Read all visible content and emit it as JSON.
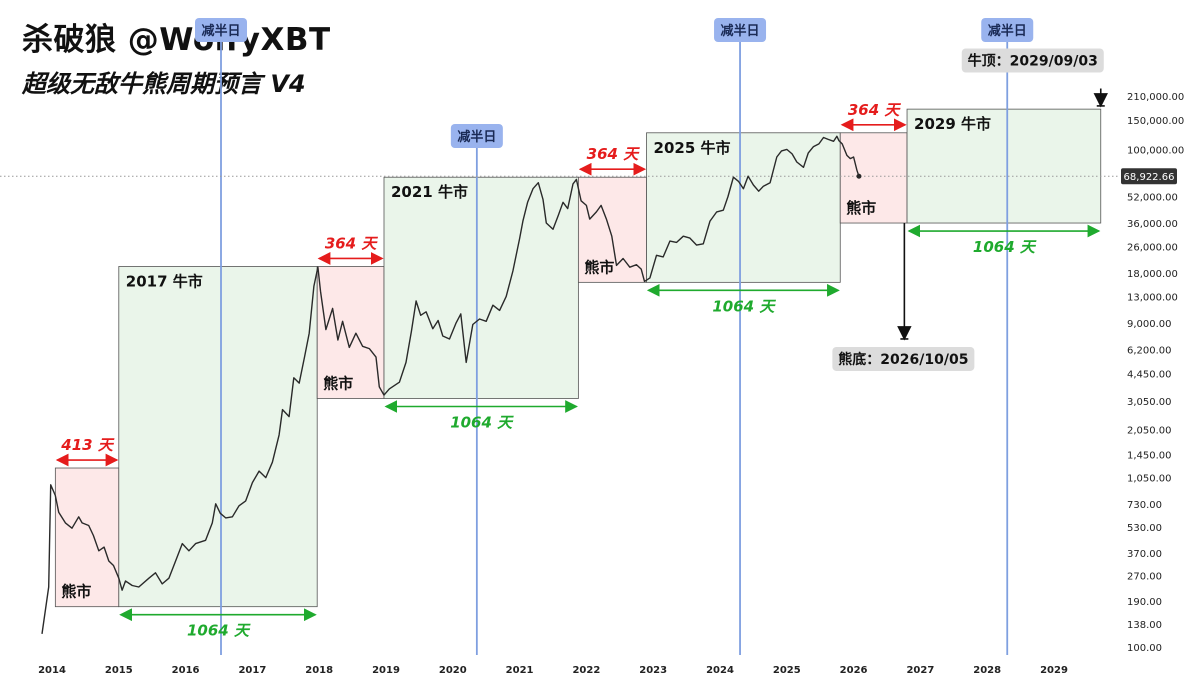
{
  "title": {
    "main": "杀破狼 @WolfyXBT",
    "subtitle": "超级无敌牛熊周期预言 V4"
  },
  "chart_data": {
    "type": "line",
    "yscale": "log",
    "ylim": [
      100,
      210000
    ],
    "xlim": [
      2013.85,
      2029.7
    ],
    "grid": false,
    "x_ticks": [
      "2014",
      "2015",
      "2016",
      "2017",
      "2018",
      "2019",
      "2020",
      "2021",
      "2022",
      "2023",
      "2024",
      "2025",
      "2026",
      "2027",
      "2028",
      "2029"
    ],
    "y_ticks": [
      "210,000.00",
      "150,000.00",
      "100,000.00",
      "52,000.00",
      "36,000.00",
      "26,000.00",
      "18,000.00",
      "13,000.00",
      "9,000.00",
      "6,200.00",
      "4,450.00",
      "3,050.00",
      "2,050.00",
      "1,450.00",
      "1,050.00",
      "730.00",
      "530.00",
      "370.00",
      "270.00",
      "190.00",
      "138.00",
      "100.00"
    ],
    "current_price": {
      "label": "68,922.66",
      "value": 68922.66
    },
    "series": [
      {
        "points": [
          [
            2013.85,
            120
          ],
          [
            2013.95,
            230
          ],
          [
            2013.98,
            950
          ],
          [
            2014.05,
            820
          ],
          [
            2014.1,
            650
          ],
          [
            2014.2,
            560
          ],
          [
            2014.3,
            520
          ],
          [
            2014.4,
            610
          ],
          [
            2014.45,
            560
          ],
          [
            2014.55,
            540
          ],
          [
            2014.62,
            470
          ],
          [
            2014.7,
            380
          ],
          [
            2014.78,
            400
          ],
          [
            2014.85,
            330
          ],
          [
            2014.92,
            310
          ],
          [
            2015.0,
            260
          ],
          [
            2015.05,
            220
          ],
          [
            2015.1,
            250
          ],
          [
            2015.2,
            235
          ],
          [
            2015.3,
            230
          ],
          [
            2015.45,
            260
          ],
          [
            2015.55,
            280
          ],
          [
            2015.65,
            240
          ],
          [
            2015.75,
            260
          ],
          [
            2015.85,
            330
          ],
          [
            2015.95,
            420
          ],
          [
            2016.05,
            380
          ],
          [
            2016.15,
            420
          ],
          [
            2016.3,
            440
          ],
          [
            2016.4,
            560
          ],
          [
            2016.45,
            730
          ],
          [
            2016.52,
            640
          ],
          [
            2016.6,
            600
          ],
          [
            2016.7,
            610
          ],
          [
            2016.8,
            710
          ],
          [
            2016.9,
            760
          ],
          [
            2017.0,
            980
          ],
          [
            2017.1,
            1150
          ],
          [
            2017.2,
            1050
          ],
          [
            2017.3,
            1300
          ],
          [
            2017.4,
            1900
          ],
          [
            2017.45,
            2700
          ],
          [
            2017.55,
            2450
          ],
          [
            2017.62,
            4200
          ],
          [
            2017.7,
            3900
          ],
          [
            2017.78,
            5600
          ],
          [
            2017.85,
            7800
          ],
          [
            2017.92,
            15000
          ],
          [
            2017.98,
            19500
          ],
          [
            2018.02,
            14000
          ],
          [
            2018.1,
            8200
          ],
          [
            2018.2,
            11000
          ],
          [
            2018.28,
            7100
          ],
          [
            2018.35,
            9200
          ],
          [
            2018.45,
            6400
          ],
          [
            2018.55,
            7800
          ],
          [
            2018.65,
            6500
          ],
          [
            2018.75,
            6300
          ],
          [
            2018.85,
            5600
          ],
          [
            2018.9,
            3700
          ],
          [
            2018.97,
            3300
          ],
          [
            2019.05,
            3600
          ],
          [
            2019.2,
            3950
          ],
          [
            2019.3,
            5200
          ],
          [
            2019.38,
            8000
          ],
          [
            2019.45,
            12200
          ],
          [
            2019.52,
            10000
          ],
          [
            2019.6,
            10500
          ],
          [
            2019.7,
            8300
          ],
          [
            2019.78,
            9300
          ],
          [
            2019.85,
            7500
          ],
          [
            2019.95,
            7200
          ],
          [
            2020.05,
            9000
          ],
          [
            2020.12,
            10200
          ],
          [
            2020.2,
            5200
          ],
          [
            2020.3,
            8800
          ],
          [
            2020.4,
            9500
          ],
          [
            2020.5,
            9200
          ],
          [
            2020.6,
            11500
          ],
          [
            2020.7,
            10700
          ],
          [
            2020.8,
            13000
          ],
          [
            2020.9,
            18500
          ],
          [
            2021.0,
            29000
          ],
          [
            2021.05,
            37000
          ],
          [
            2021.12,
            48000
          ],
          [
            2021.2,
            58000
          ],
          [
            2021.28,
            63000
          ],
          [
            2021.35,
            50000
          ],
          [
            2021.4,
            36000
          ],
          [
            2021.5,
            33000
          ],
          [
            2021.58,
            40000
          ],
          [
            2021.65,
            48000
          ],
          [
            2021.72,
            44000
          ],
          [
            2021.8,
            62000
          ],
          [
            2021.85,
            66000
          ],
          [
            2021.92,
            49000
          ],
          [
            2022.0,
            46000
          ],
          [
            2022.05,
            38000
          ],
          [
            2022.15,
            42000
          ],
          [
            2022.22,
            46000
          ],
          [
            2022.3,
            38000
          ],
          [
            2022.38,
            30000
          ],
          [
            2022.45,
            20000
          ],
          [
            2022.55,
            22000
          ],
          [
            2022.65,
            19500
          ],
          [
            2022.75,
            20200
          ],
          [
            2022.82,
            19000
          ],
          [
            2022.87,
            16000
          ],
          [
            2022.95,
            16800
          ],
          [
            2023.05,
            23000
          ],
          [
            2023.15,
            22500
          ],
          [
            2023.25,
            28000
          ],
          [
            2023.35,
            27500
          ],
          [
            2023.45,
            30000
          ],
          [
            2023.55,
            29200
          ],
          [
            2023.65,
            26500
          ],
          [
            2023.75,
            27000
          ],
          [
            2023.85,
            37000
          ],
          [
            2023.95,
            42000
          ],
          [
            2024.05,
            43000
          ],
          [
            2024.12,
            52000
          ],
          [
            2024.2,
            68000
          ],
          [
            2024.28,
            64000
          ],
          [
            2024.35,
            58000
          ],
          [
            2024.42,
            69000
          ],
          [
            2024.5,
            61000
          ],
          [
            2024.58,
            56000
          ],
          [
            2024.65,
            60000
          ],
          [
            2024.75,
            63000
          ],
          [
            2024.85,
            90000
          ],
          [
            2024.92,
            98000
          ],
          [
            2025.0,
            100000
          ],
          [
            2025.08,
            94000
          ],
          [
            2025.15,
            84000
          ],
          [
            2025.25,
            78000
          ],
          [
            2025.32,
            95000
          ],
          [
            2025.4,
            104000
          ],
          [
            2025.48,
            108000
          ],
          [
            2025.55,
            118000
          ],
          [
            2025.62,
            115000
          ],
          [
            2025.7,
            112000
          ],
          [
            2025.75,
            120000
          ],
          [
            2025.78,
            113000
          ],
          [
            2025.83,
            108000
          ],
          [
            2025.9,
            92000
          ],
          [
            2025.95,
            88000
          ],
          [
            2026.0,
            90000
          ],
          [
            2026.05,
            75000
          ],
          [
            2026.08,
            68922
          ]
        ]
      }
    ],
    "halvings": [
      2016.53,
      2020.36,
      2024.3,
      2028.3
    ],
    "halving_label": "减半日",
    "boxes": [
      {
        "kind": "bear",
        "x0": 2014.05,
        "x1": 2015.0,
        "y0": 175,
        "y1": 1200,
        "label": "熊市",
        "top_label": "413 天"
      },
      {
        "kind": "bull",
        "x0": 2015.0,
        "x1": 2017.97,
        "y0": 175,
        "y1": 19700,
        "label": "2017 牛市",
        "bottom_label": "1064 天"
      },
      {
        "kind": "bear",
        "x0": 2017.97,
        "x1": 2018.97,
        "y0": 3150,
        "y1": 19700,
        "label": "熊市",
        "top_label": "364 天"
      },
      {
        "kind": "bull",
        "x0": 2018.97,
        "x1": 2021.88,
        "y0": 3150,
        "y1": 68000,
        "label": "2021 牛市",
        "bottom_label": "1064 天"
      },
      {
        "kind": "bear",
        "x0": 2021.88,
        "x1": 2022.9,
        "y0": 15800,
        "y1": 68000,
        "label": "熊市",
        "top_label": "364 天"
      },
      {
        "kind": "bull",
        "x0": 2022.9,
        "x1": 2025.8,
        "y0": 15800,
        "y1": 126000,
        "label": "2025 牛市",
        "bottom_label": "1064 天"
      },
      {
        "kind": "bear",
        "x0": 2025.8,
        "x1": 2026.8,
        "y0": 36000,
        "y1": 126000,
        "label": "熊市",
        "top_label": "364 天"
      },
      {
        "kind": "bull",
        "x0": 2026.8,
        "x1": 2029.7,
        "y0": 36000,
        "y1": 175000,
        "label": "2029 牛市",
        "bottom_label": "1064 天"
      }
    ],
    "annotations": [
      {
        "label": "熊底：2026/10/05",
        "x": 2026.76,
        "arrow_from": 36000,
        "arrow_to": 7200
      },
      {
        "label": "牛顶：2029/09/03",
        "x": 2029.7,
        "arrow_from": 233000,
        "arrow_to": 183000
      }
    ]
  },
  "colors": {
    "bull_fill": "#eaf5ea",
    "bear_fill": "#fde8e8",
    "box_stroke": "#555555",
    "price_line": "#2a2a2a",
    "halving_line": "#7f9fe0",
    "halving_badge": "#99b3ee",
    "bull_text": "#1faa2e",
    "bear_text": "#e51c1c",
    "axis_text": "#222222",
    "gray_badge": "#dcdcdc",
    "price_badge": "#333333"
  }
}
